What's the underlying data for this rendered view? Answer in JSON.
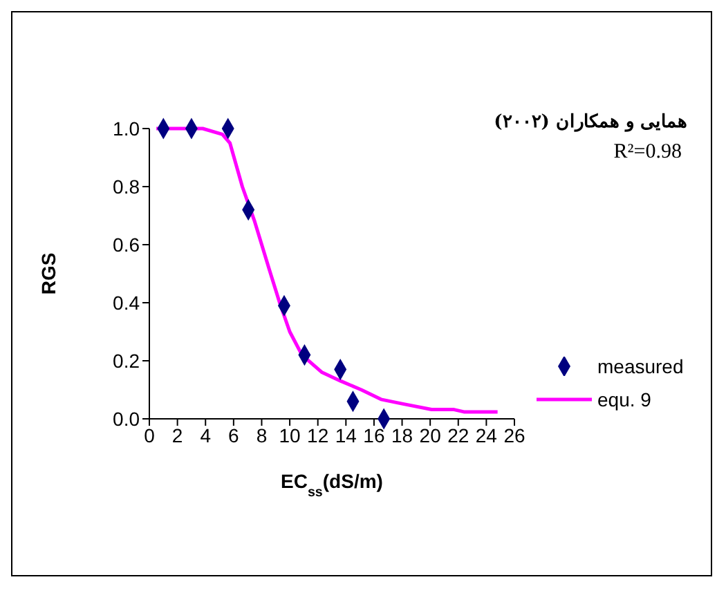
{
  "chart_data": {
    "type": "scatter",
    "title": "همایی و همکاران (۲۰۰۲)",
    "annotations": [
      "R²=0.98"
    ],
    "xlabel": "EC$_{ss}$(dS/m)",
    "ylabel": "RGS",
    "xlim": [
      0,
      26
    ],
    "xticks": [
      0,
      2,
      4,
      6,
      8,
      10,
      12,
      14,
      16,
      18,
      20,
      22,
      24,
      26
    ],
    "ylim": [
      0,
      1
    ],
    "yticks": [
      {
        "value": 0,
        "label": "0.0"
      },
      {
        "value": 0.2,
        "label": "0.2"
      },
      {
        "value": 0.4,
        "label": "0.4"
      },
      {
        "value": 0.6,
        "label": "0.6"
      },
      {
        "value": 0.8,
        "label": "0.8"
      },
      {
        "value": 1,
        "label": "1.0"
      }
    ],
    "grid": false,
    "legend": "right",
    "series": [
      {
        "name": "measured",
        "marker": "diamond",
        "color": "#000080",
        "x": [
          1,
          3,
          5.6,
          7.05,
          9.6,
          11.05,
          13.6,
          14.5,
          16.7
        ],
        "values": [
          1,
          1,
          1,
          0.72,
          0.39,
          0.22,
          0.17,
          0.06,
          0
        ]
      },
      {
        "name": "equ. 9",
        "type": "line",
        "marker": "none",
        "color": "#ff00ff",
        "x": [
          0.5,
          3.8,
          5.2,
          5.74,
          6.62,
          7.5,
          8.57,
          9.28,
          10,
          10.87,
          12.3,
          13.64,
          15.1,
          16.5,
          18,
          20.1,
          21.7,
          22.4,
          24.8
        ],
        "values": [
          1,
          1,
          0.98,
          0.95,
          0.8,
          0.68,
          0.51,
          0.4,
          0.3,
          0.22,
          0.16,
          0.13,
          0.1,
          0.067,
          0.052,
          0.032,
          0.032,
          0.024,
          0.024
        ]
      }
    ]
  }
}
